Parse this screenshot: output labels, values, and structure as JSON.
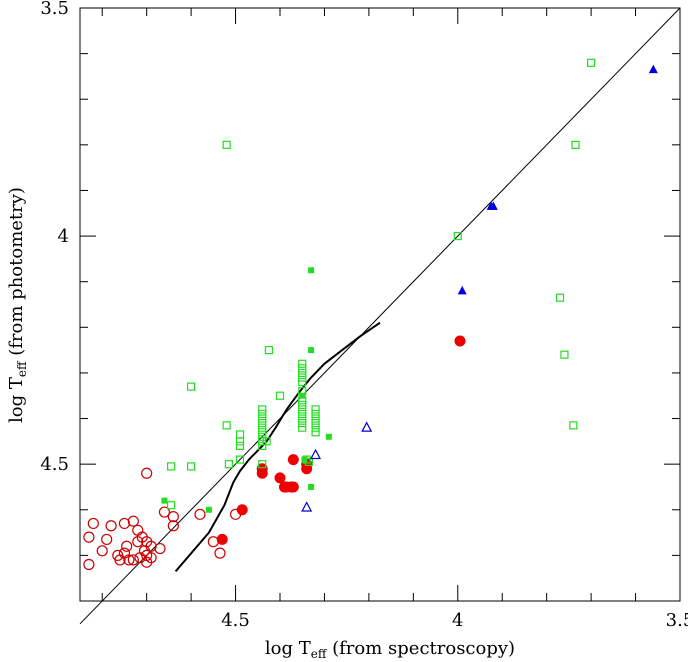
{
  "chart_data": {
    "type": "scatter",
    "title": "",
    "xlabel": "log T",
    "xlabel_sub": "eff",
    "xlabel_suffix": " (from spectroscopy)",
    "ylabel": "log T",
    "ylabel_sub": "eff",
    "ylabel_suffix": " (from photometry)",
    "xlim": [
      4.85,
      3.5
    ],
    "ylim": [
      4.8,
      3.5
    ],
    "x_ticks": [
      {
        "value": 4.5,
        "label": "4.5"
      },
      {
        "value": 4.0,
        "label": "4"
      },
      {
        "value": 3.5,
        "label": "3.5"
      }
    ],
    "y_ticks": [
      {
        "value": 3.5,
        "label": "3.5"
      },
      {
        "value": 4.0,
        "label": "4"
      },
      {
        "value": 4.5,
        "label": "4.5"
      }
    ],
    "grid": false,
    "legend": "none",
    "one_to_one_line": [
      [
        4.85,
        4.85
      ],
      [
        3.5,
        3.5
      ]
    ],
    "calibration_curve": [
      [
        4.635,
        4.735
      ],
      [
        4.56,
        4.65
      ],
      [
        4.525,
        4.59
      ],
      [
        4.505,
        4.54
      ],
      [
        4.49,
        4.515
      ],
      [
        4.47,
        4.49
      ],
      [
        4.45,
        4.47
      ],
      [
        4.43,
        4.45
      ],
      [
        4.41,
        4.42
      ],
      [
        4.385,
        4.38
      ],
      [
        4.355,
        4.34
      ],
      [
        4.33,
        4.31
      ],
      [
        4.3,
        4.28
      ],
      [
        4.26,
        4.25
      ],
      [
        4.22,
        4.22
      ],
      [
        4.175,
        4.19
      ]
    ],
    "series": [
      {
        "marker": "open-circle",
        "color": "#cc0000",
        "points": [
          [
            4.7,
            4.52
          ],
          [
            4.73,
            4.625
          ],
          [
            4.78,
            4.635
          ],
          [
            4.82,
            4.63
          ],
          [
            4.83,
            4.66
          ],
          [
            4.79,
            4.665
          ],
          [
            4.8,
            4.69
          ],
          [
            4.83,
            4.72
          ],
          [
            4.75,
            4.63
          ],
          [
            4.72,
            4.645
          ],
          [
            4.71,
            4.66
          ],
          [
            4.7,
            4.67
          ],
          [
            4.69,
            4.68
          ],
          [
            4.705,
            4.69
          ],
          [
            4.72,
            4.67
          ],
          [
            4.745,
            4.68
          ],
          [
            4.75,
            4.695
          ],
          [
            4.76,
            4.71
          ],
          [
            4.765,
            4.7
          ],
          [
            4.74,
            4.71
          ],
          [
            4.73,
            4.71
          ],
          [
            4.715,
            4.705
          ],
          [
            4.7,
            4.7
          ],
          [
            4.69,
            4.705
          ],
          [
            4.7,
            4.715
          ],
          [
            4.67,
            4.685
          ],
          [
            4.66,
            4.605
          ],
          [
            4.64,
            4.615
          ],
          [
            4.64,
            4.635
          ],
          [
            4.58,
            4.61
          ],
          [
            4.55,
            4.67
          ],
          [
            4.535,
            4.695
          ],
          [
            4.5,
            4.61
          ]
        ]
      },
      {
        "marker": "filled-circle",
        "color": "#ee0000",
        "points": [
          [
            4.53,
            4.665
          ],
          [
            4.485,
            4.6
          ],
          [
            4.44,
            4.51
          ],
          [
            4.44,
            4.52
          ],
          [
            4.4,
            4.53
          ],
          [
            4.39,
            4.55
          ],
          [
            4.385,
            4.55
          ],
          [
            4.375,
            4.55
          ],
          [
            4.37,
            4.55
          ],
          [
            4.37,
            4.49
          ],
          [
            4.34,
            4.5
          ],
          [
            4.34,
            4.51
          ],
          [
            3.995,
            4.23
          ]
        ]
      },
      {
        "marker": "open-square",
        "color": "#22dd22",
        "points": [
          [
            3.7,
            3.62
          ],
          [
            3.735,
            3.8
          ],
          [
            4.52,
            3.8
          ],
          [
            4.0,
            4.0
          ],
          [
            3.77,
            4.135
          ],
          [
            4.425,
            4.25
          ],
          [
            4.6,
            4.33
          ],
          [
            4.35,
            4.28
          ],
          [
            4.35,
            4.29
          ],
          [
            4.35,
            4.3
          ],
          [
            4.35,
            4.31
          ],
          [
            4.35,
            4.32
          ],
          [
            4.35,
            4.34
          ],
          [
            4.35,
            4.36
          ],
          [
            4.35,
            4.37
          ],
          [
            4.35,
            4.38
          ],
          [
            4.35,
            4.39
          ],
          [
            4.35,
            4.4
          ],
          [
            4.35,
            4.41
          ],
          [
            4.35,
            4.42
          ],
          [
            4.32,
            4.38
          ],
          [
            4.32,
            4.39
          ],
          [
            4.32,
            4.4
          ],
          [
            4.32,
            4.41
          ],
          [
            4.32,
            4.42
          ],
          [
            4.32,
            4.43
          ],
          [
            4.44,
            4.38
          ],
          [
            4.44,
            4.39
          ],
          [
            4.44,
            4.4
          ],
          [
            4.44,
            4.41
          ],
          [
            4.44,
            4.42
          ],
          [
            4.44,
            4.43
          ],
          [
            4.44,
            4.44
          ],
          [
            4.44,
            4.45
          ],
          [
            4.44,
            4.46
          ],
          [
            4.44,
            4.5
          ],
          [
            4.43,
            4.45
          ],
          [
            4.4,
            4.35
          ],
          [
            4.52,
            4.415
          ],
          [
            4.49,
            4.435
          ],
          [
            4.49,
            4.45
          ],
          [
            4.49,
            4.46
          ],
          [
            4.515,
            4.5
          ],
          [
            4.6,
            4.505
          ],
          [
            4.645,
            4.505
          ],
          [
            4.645,
            4.59
          ],
          [
            4.49,
            4.49
          ],
          [
            3.76,
            4.26
          ],
          [
            3.74,
            4.415
          ],
          [
            4.34,
            4.49
          ],
          [
            4.335,
            4.495
          ]
        ]
      },
      {
        "marker": "filled-square",
        "color": "#22dd22",
        "points": [
          [
            4.33,
            4.075
          ],
          [
            4.33,
            4.25
          ],
          [
            4.35,
            4.35
          ],
          [
            4.29,
            4.44
          ],
          [
            4.345,
            4.49
          ],
          [
            4.33,
            4.55
          ],
          [
            4.56,
            4.6
          ],
          [
            4.66,
            4.58
          ]
        ]
      },
      {
        "marker": "filled-triangle",
        "color": "#0000dd",
        "points": [
          [
            3.56,
            3.635
          ],
          [
            3.92,
            3.935
          ],
          [
            3.925,
            3.935
          ],
          [
            3.99,
            4.12
          ]
        ]
      },
      {
        "marker": "open-triangle",
        "color": "#0000cc",
        "points": [
          [
            4.205,
            4.42
          ],
          [
            4.32,
            4.48
          ],
          [
            4.34,
            4.595
          ]
        ]
      }
    ]
  }
}
